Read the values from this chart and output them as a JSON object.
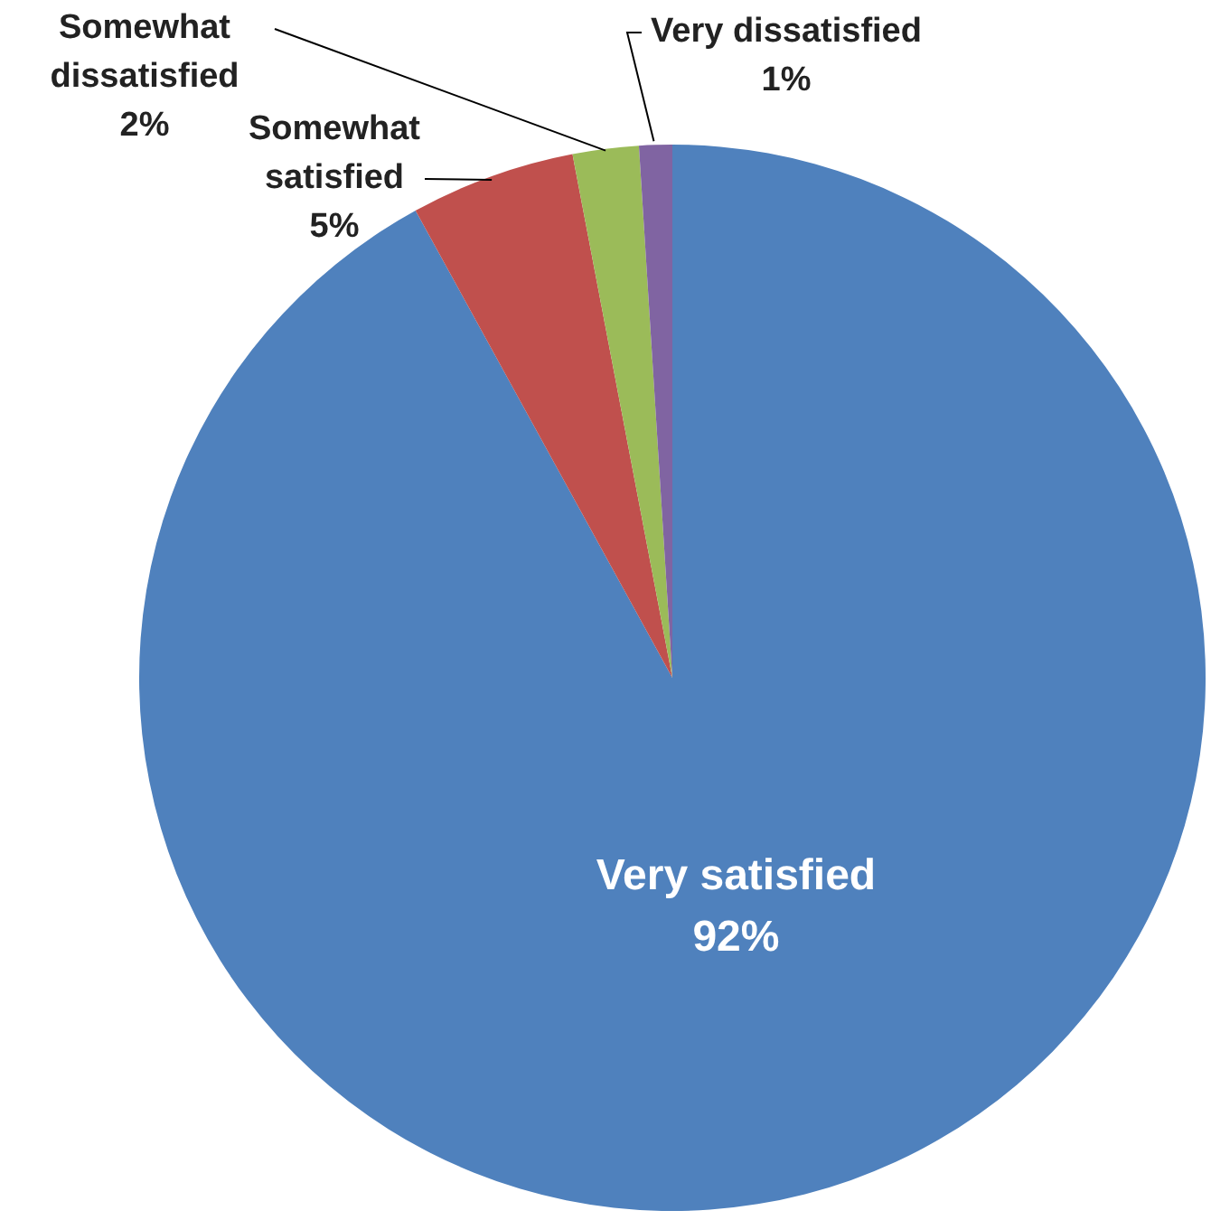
{
  "chart_data": {
    "type": "pie",
    "categories": [
      "Very satisfied",
      "Somewhat satisfied",
      "Somewhat dissatisfied",
      "Very dissatisfied"
    ],
    "values": [
      92,
      5,
      2,
      1
    ],
    "colors": [
      "#4f81bd",
      "#c0504d",
      "#9bbb59",
      "#8064a2"
    ],
    "value_labels": [
      "92%",
      "5%",
      "2%",
      "1%"
    ],
    "legend": false
  }
}
